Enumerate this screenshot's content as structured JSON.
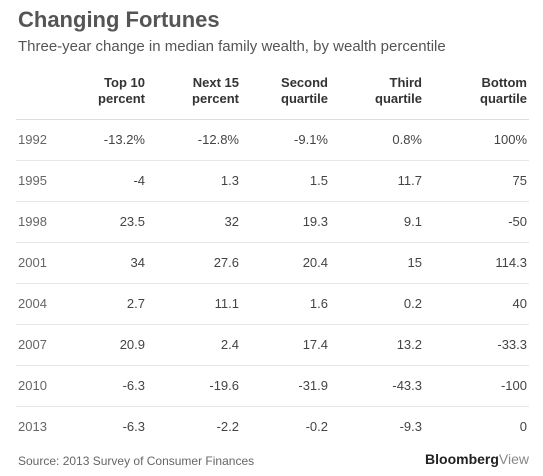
{
  "chart_data": {
    "type": "table",
    "title": "Changing Fortunes",
    "subtitle": "Three-year change in median family wealth, by wealth percentile",
    "columns": [
      {
        "line1": "Top 10",
        "line2": "percent"
      },
      {
        "line1": "Next 15",
        "line2": "percent"
      },
      {
        "line1": "Second",
        "line2": "quartile"
      },
      {
        "line1": "Third",
        "line2": "quartile"
      },
      {
        "line1": "Bottom",
        "line2": "quartile"
      }
    ],
    "rows": [
      {
        "year": "1992",
        "values": [
          "-13.2%",
          "-12.8%",
          "-9.1%",
          "0.8%",
          "100%"
        ]
      },
      {
        "year": "1995",
        "values": [
          "-4",
          "1.3",
          "1.5",
          "11.7",
          "75"
        ]
      },
      {
        "year": "1998",
        "values": [
          "23.5",
          "32",
          "19.3",
          "9.1",
          "-50"
        ]
      },
      {
        "year": "2001",
        "values": [
          "34",
          "27.6",
          "20.4",
          "15",
          "114.3"
        ]
      },
      {
        "year": "2004",
        "values": [
          "2.7",
          "11.1",
          "1.6",
          "0.2",
          "40"
        ]
      },
      {
        "year": "2007",
        "values": [
          "20.9",
          "2.4",
          "17.4",
          "13.2",
          "-33.3"
        ]
      },
      {
        "year": "2010",
        "values": [
          "-6.3",
          "-19.6",
          "-31.9",
          "-43.3",
          "-100"
        ]
      },
      {
        "year": "2013",
        "values": [
          "-6.3",
          "-2.2",
          "-0.2",
          "-9.3",
          "0"
        ]
      }
    ]
  },
  "footer": {
    "source": "Source: 2013 Survey of Consumer Finances",
    "brand_main": "Bloomberg",
    "brand_sub": "View"
  }
}
